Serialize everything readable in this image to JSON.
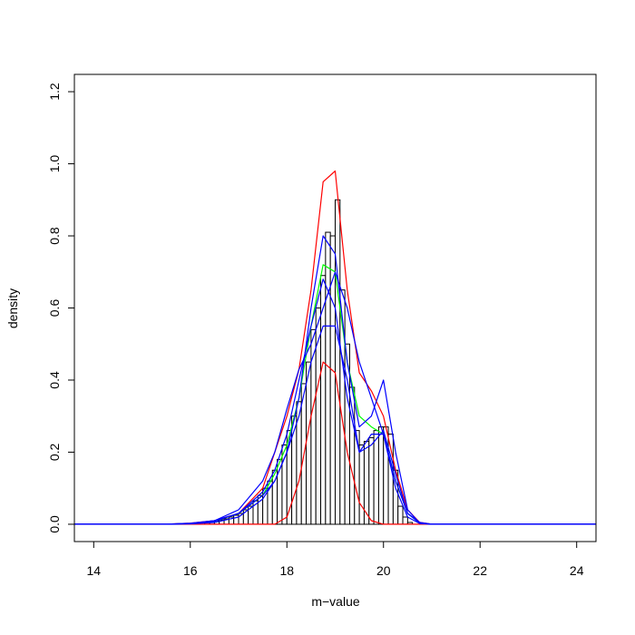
{
  "chart_data": {
    "type": "histogram",
    "x_label": "m−value",
    "y_label": "density",
    "xlim": [
      13.6,
      24.4
    ],
    "ylim": [
      -0.048,
      1.248
    ],
    "xticks": [
      14,
      16,
      18,
      20,
      22,
      24
    ],
    "yticks": [
      {
        "value": 0,
        "label": "0.0"
      },
      {
        "value": 0.2,
        "label": "0.2"
      },
      {
        "value": 0.4,
        "label": "0.4"
      },
      {
        "value": 0.6,
        "label": "0.6"
      },
      {
        "value": 0.8,
        "label": "0.8"
      },
      {
        "value": 1.0,
        "label": "1.0"
      },
      {
        "value": 1.2,
        "label": "1.2"
      }
    ],
    "bins": [
      16.0,
      16.1,
      16.2,
      16.3,
      16.4,
      16.5,
      16.6,
      16.7,
      16.8,
      16.9,
      17.0,
      17.1,
      17.2,
      17.3,
      17.4,
      17.5,
      17.6,
      17.7,
      17.8,
      17.9,
      18.0,
      18.1,
      18.2,
      18.3,
      18.4,
      18.5,
      18.6,
      18.7,
      18.8,
      18.9,
      19.0,
      19.1,
      19.2,
      19.3,
      19.4,
      19.5,
      19.6,
      19.7,
      19.8,
      19.9,
      20.0,
      20.1,
      20.2,
      20.3,
      20.4,
      20.5,
      20.6
    ],
    "values": [
      0.003,
      0.004,
      0.005,
      0.006,
      0.008,
      0.01,
      0.012,
      0.015,
      0.02,
      0.025,
      0.03,
      0.04,
      0.05,
      0.065,
      0.08,
      0.1,
      0.12,
      0.15,
      0.18,
      0.22,
      0.26,
      0.3,
      0.34,
      0.39,
      0.45,
      0.54,
      0.6,
      0.69,
      0.81,
      0.8,
      0.9,
      0.65,
      0.5,
      0.38,
      0.26,
      0.22,
      0.23,
      0.24,
      0.26,
      0.27,
      0.27,
      0.25,
      0.15,
      0.05,
      0.02,
      0.005
    ],
    "color": "#ffffff",
    "curve_x": [
      13.6,
      15.5,
      16,
      16.5,
      17,
      17.5,
      17.75,
      18,
      18.25,
      18.5,
      18.75,
      19,
      19.25,
      19.5,
      19.75,
      20,
      20.25,
      20.5,
      20.75,
      21,
      21.5,
      24.4
    ],
    "series": [
      {
        "color": "#ff0000",
        "values": [
          0,
          0,
          0.003,
          0.01,
          0.03,
          0.1,
          0.2,
          0.3,
          0.43,
          0.65,
          0.95,
          0.98,
          0.65,
          0.42,
          0.37,
          0.3,
          0.15,
          0.04,
          0.005,
          0,
          0,
          0
        ]
      },
      {
        "color": "#ff0000",
        "values": [
          0,
          0,
          0,
          0,
          0,
          0,
          0,
          0.02,
          0.12,
          0.3,
          0.45,
          0.42,
          0.2,
          0.06,
          0.01,
          0,
          0,
          0,
          0,
          0,
          0,
          0
        ]
      },
      {
        "color": "#00ff00",
        "values": [
          0,
          0,
          0.002,
          0.008,
          0.03,
          0.08,
          0.14,
          0.22,
          0.35,
          0.55,
          0.72,
          0.7,
          0.45,
          0.3,
          0.27,
          0.25,
          0.12,
          0.03,
          0.003,
          0,
          0,
          0
        ]
      },
      {
        "color": "#0000ff",
        "values": [
          0,
          0,
          0.002,
          0.008,
          0.03,
          0.08,
          0.12,
          0.2,
          0.35,
          0.6,
          0.8,
          0.75,
          0.45,
          0.27,
          0.3,
          0.4,
          0.2,
          0.04,
          0.003,
          0,
          0,
          0
        ]
      },
      {
        "color": "#0000ff",
        "values": [
          0,
          0,
          0.003,
          0.01,
          0.04,
          0.12,
          0.2,
          0.32,
          0.43,
          0.5,
          0.6,
          0.7,
          0.6,
          0.45,
          0.35,
          0.25,
          0.12,
          0.03,
          0.005,
          0,
          0,
          0
        ]
      },
      {
        "color": "#0000ff",
        "values": [
          0,
          0,
          0.001,
          0.005,
          0.02,
          0.07,
          0.12,
          0.2,
          0.3,
          0.45,
          0.55,
          0.55,
          0.4,
          0.2,
          0.25,
          0.25,
          0.1,
          0.02,
          0.002,
          0,
          0,
          0
        ]
      },
      {
        "color": "#0000ff",
        "values": [
          0,
          0,
          0.002,
          0.01,
          0.03,
          0.09,
          0.15,
          0.25,
          0.4,
          0.55,
          0.68,
          0.6,
          0.35,
          0.2,
          0.22,
          0.26,
          0.14,
          0.03,
          0.003,
          0,
          0,
          0
        ]
      }
    ]
  }
}
